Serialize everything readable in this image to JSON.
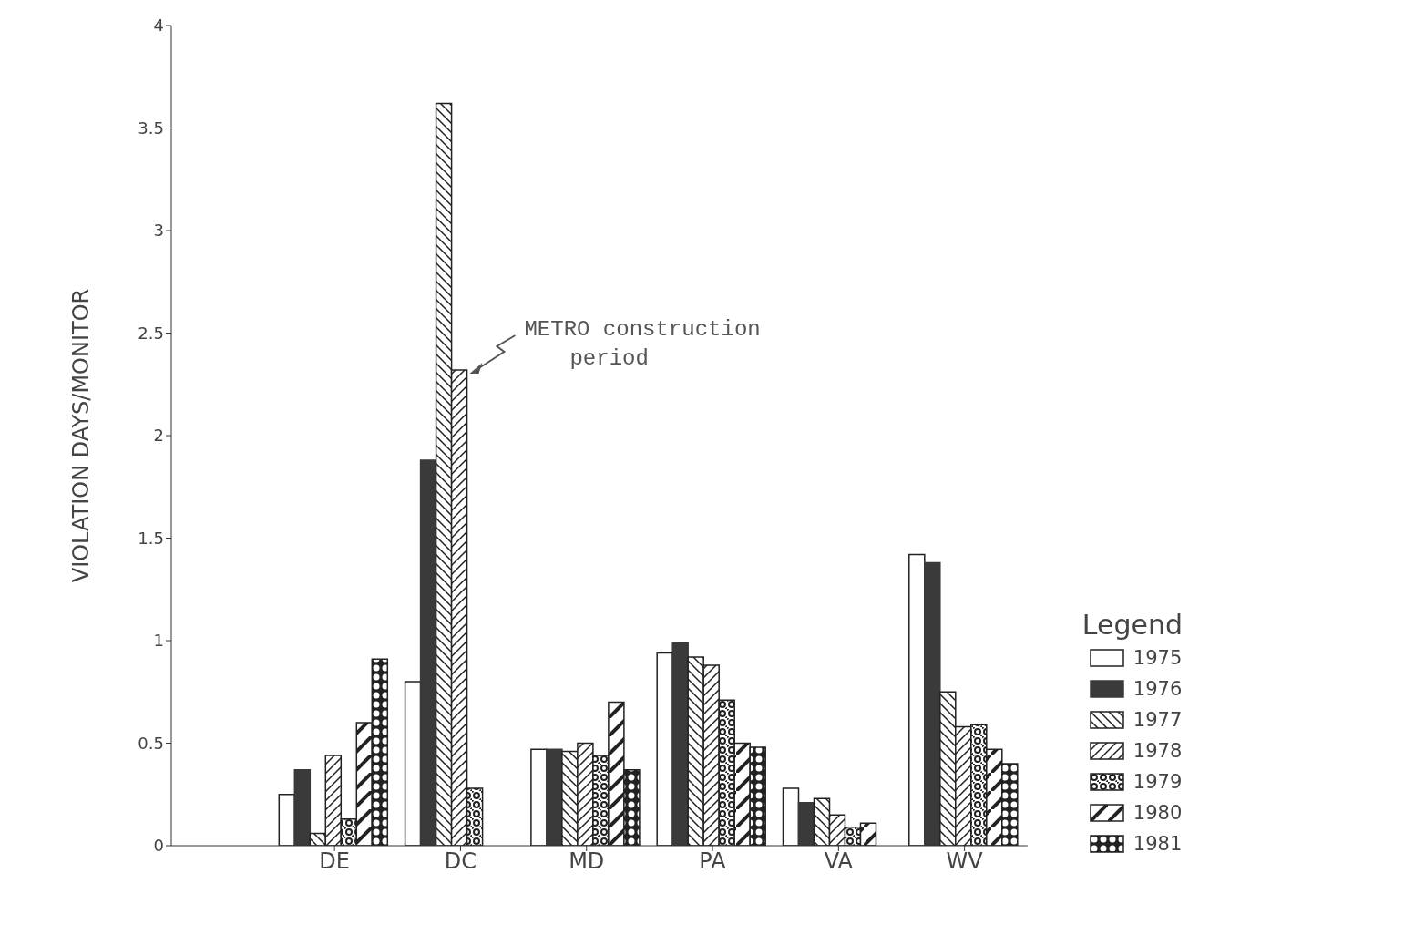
{
  "chart_data": {
    "type": "bar",
    "ylabel": "VIOLATION DAYS/MONITOR",
    "legend_title": "Legend",
    "legend": "right",
    "categories": [
      "DE",
      "DC",
      "MD",
      "PA",
      "VA",
      "WV"
    ],
    "ylim": [
      0,
      4
    ],
    "yticks": [
      0,
      0.5,
      1,
      1.5,
      2,
      2.5,
      3,
      3.5,
      4
    ],
    "grid": false,
    "annotations": [
      {
        "text": "METRO construction period",
        "x": "DC",
        "y": 2.32
      }
    ],
    "series": [
      {
        "name": "1975",
        "color": "#222222",
        "values": [
          0.25,
          0.8,
          0.47,
          0.94,
          0.28,
          1.42
        ]
      },
      {
        "name": "1976",
        "color": "#3a3a3a",
        "values": [
          0.37,
          1.88,
          0.47,
          0.99,
          0.21,
          1.38
        ]
      },
      {
        "name": "1977",
        "color": "#222222",
        "values": [
          0.06,
          3.62,
          0.46,
          0.92,
          0.23,
          0.75
        ]
      },
      {
        "name": "1978",
        "color": "#222222",
        "values": [
          0.44,
          2.32,
          0.5,
          0.88,
          0.15,
          0.58
        ]
      },
      {
        "name": "1979",
        "color": "#222222",
        "values": [
          0.13,
          0.28,
          0.44,
          0.71,
          0.09,
          0.59
        ]
      },
      {
        "name": "1980",
        "color": "#222222",
        "values": [
          0.6,
          null,
          0.7,
          0.5,
          0.11,
          0.47
        ]
      },
      {
        "name": "1981",
        "color": "#222222",
        "values": [
          0.91,
          null,
          0.37,
          0.48,
          null,
          0.4
        ]
      }
    ]
  }
}
